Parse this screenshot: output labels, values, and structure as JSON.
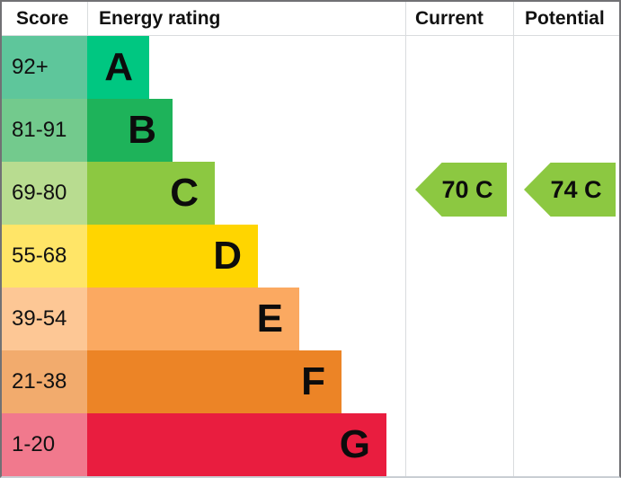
{
  "chart_data": {
    "type": "bar",
    "title": "Energy rating",
    "columns": [
      "Score",
      "Energy rating",
      "Current",
      "Potential"
    ],
    "categories": [
      "A",
      "B",
      "C",
      "D",
      "E",
      "F",
      "G"
    ],
    "score_ranges": [
      "92+",
      "81-91",
      "69-80",
      "55-68",
      "39-54",
      "21-38",
      "1-20"
    ],
    "current": {
      "value": 70,
      "rating": "C"
    },
    "potential": {
      "value": 74,
      "rating": "C"
    }
  },
  "header": {
    "score": "Score",
    "rating": "Energy rating",
    "current": "Current",
    "potential": "Potential"
  },
  "bands": [
    {
      "letter": "A",
      "score": "92+",
      "bar_color": "#00c781",
      "score_color": "#5ec69b"
    },
    {
      "letter": "B",
      "score": "81-91",
      "bar_color": "#1eb35a",
      "score_color": "#73ca8d"
    },
    {
      "letter": "C",
      "score": "69-80",
      "bar_color": "#8cc841",
      "score_color": "#b8dc90"
    },
    {
      "letter": "D",
      "score": "55-68",
      "bar_color": "#ffd500",
      "score_color": "#ffe567"
    },
    {
      "letter": "E",
      "score": "39-54",
      "bar_color": "#fba961",
      "score_color": "#fdc795"
    },
    {
      "letter": "F",
      "score": "21-38",
      "bar_color": "#ec8426",
      "score_color": "#f2ab6d"
    },
    {
      "letter": "G",
      "score": "1-20",
      "bar_color": "#e91d3f",
      "score_color": "#f1798d"
    }
  ],
  "current_arrow": {
    "label": "70 C",
    "color": "#8cc841"
  },
  "potential_arrow": {
    "label": "74 C",
    "color": "#8cc841"
  }
}
